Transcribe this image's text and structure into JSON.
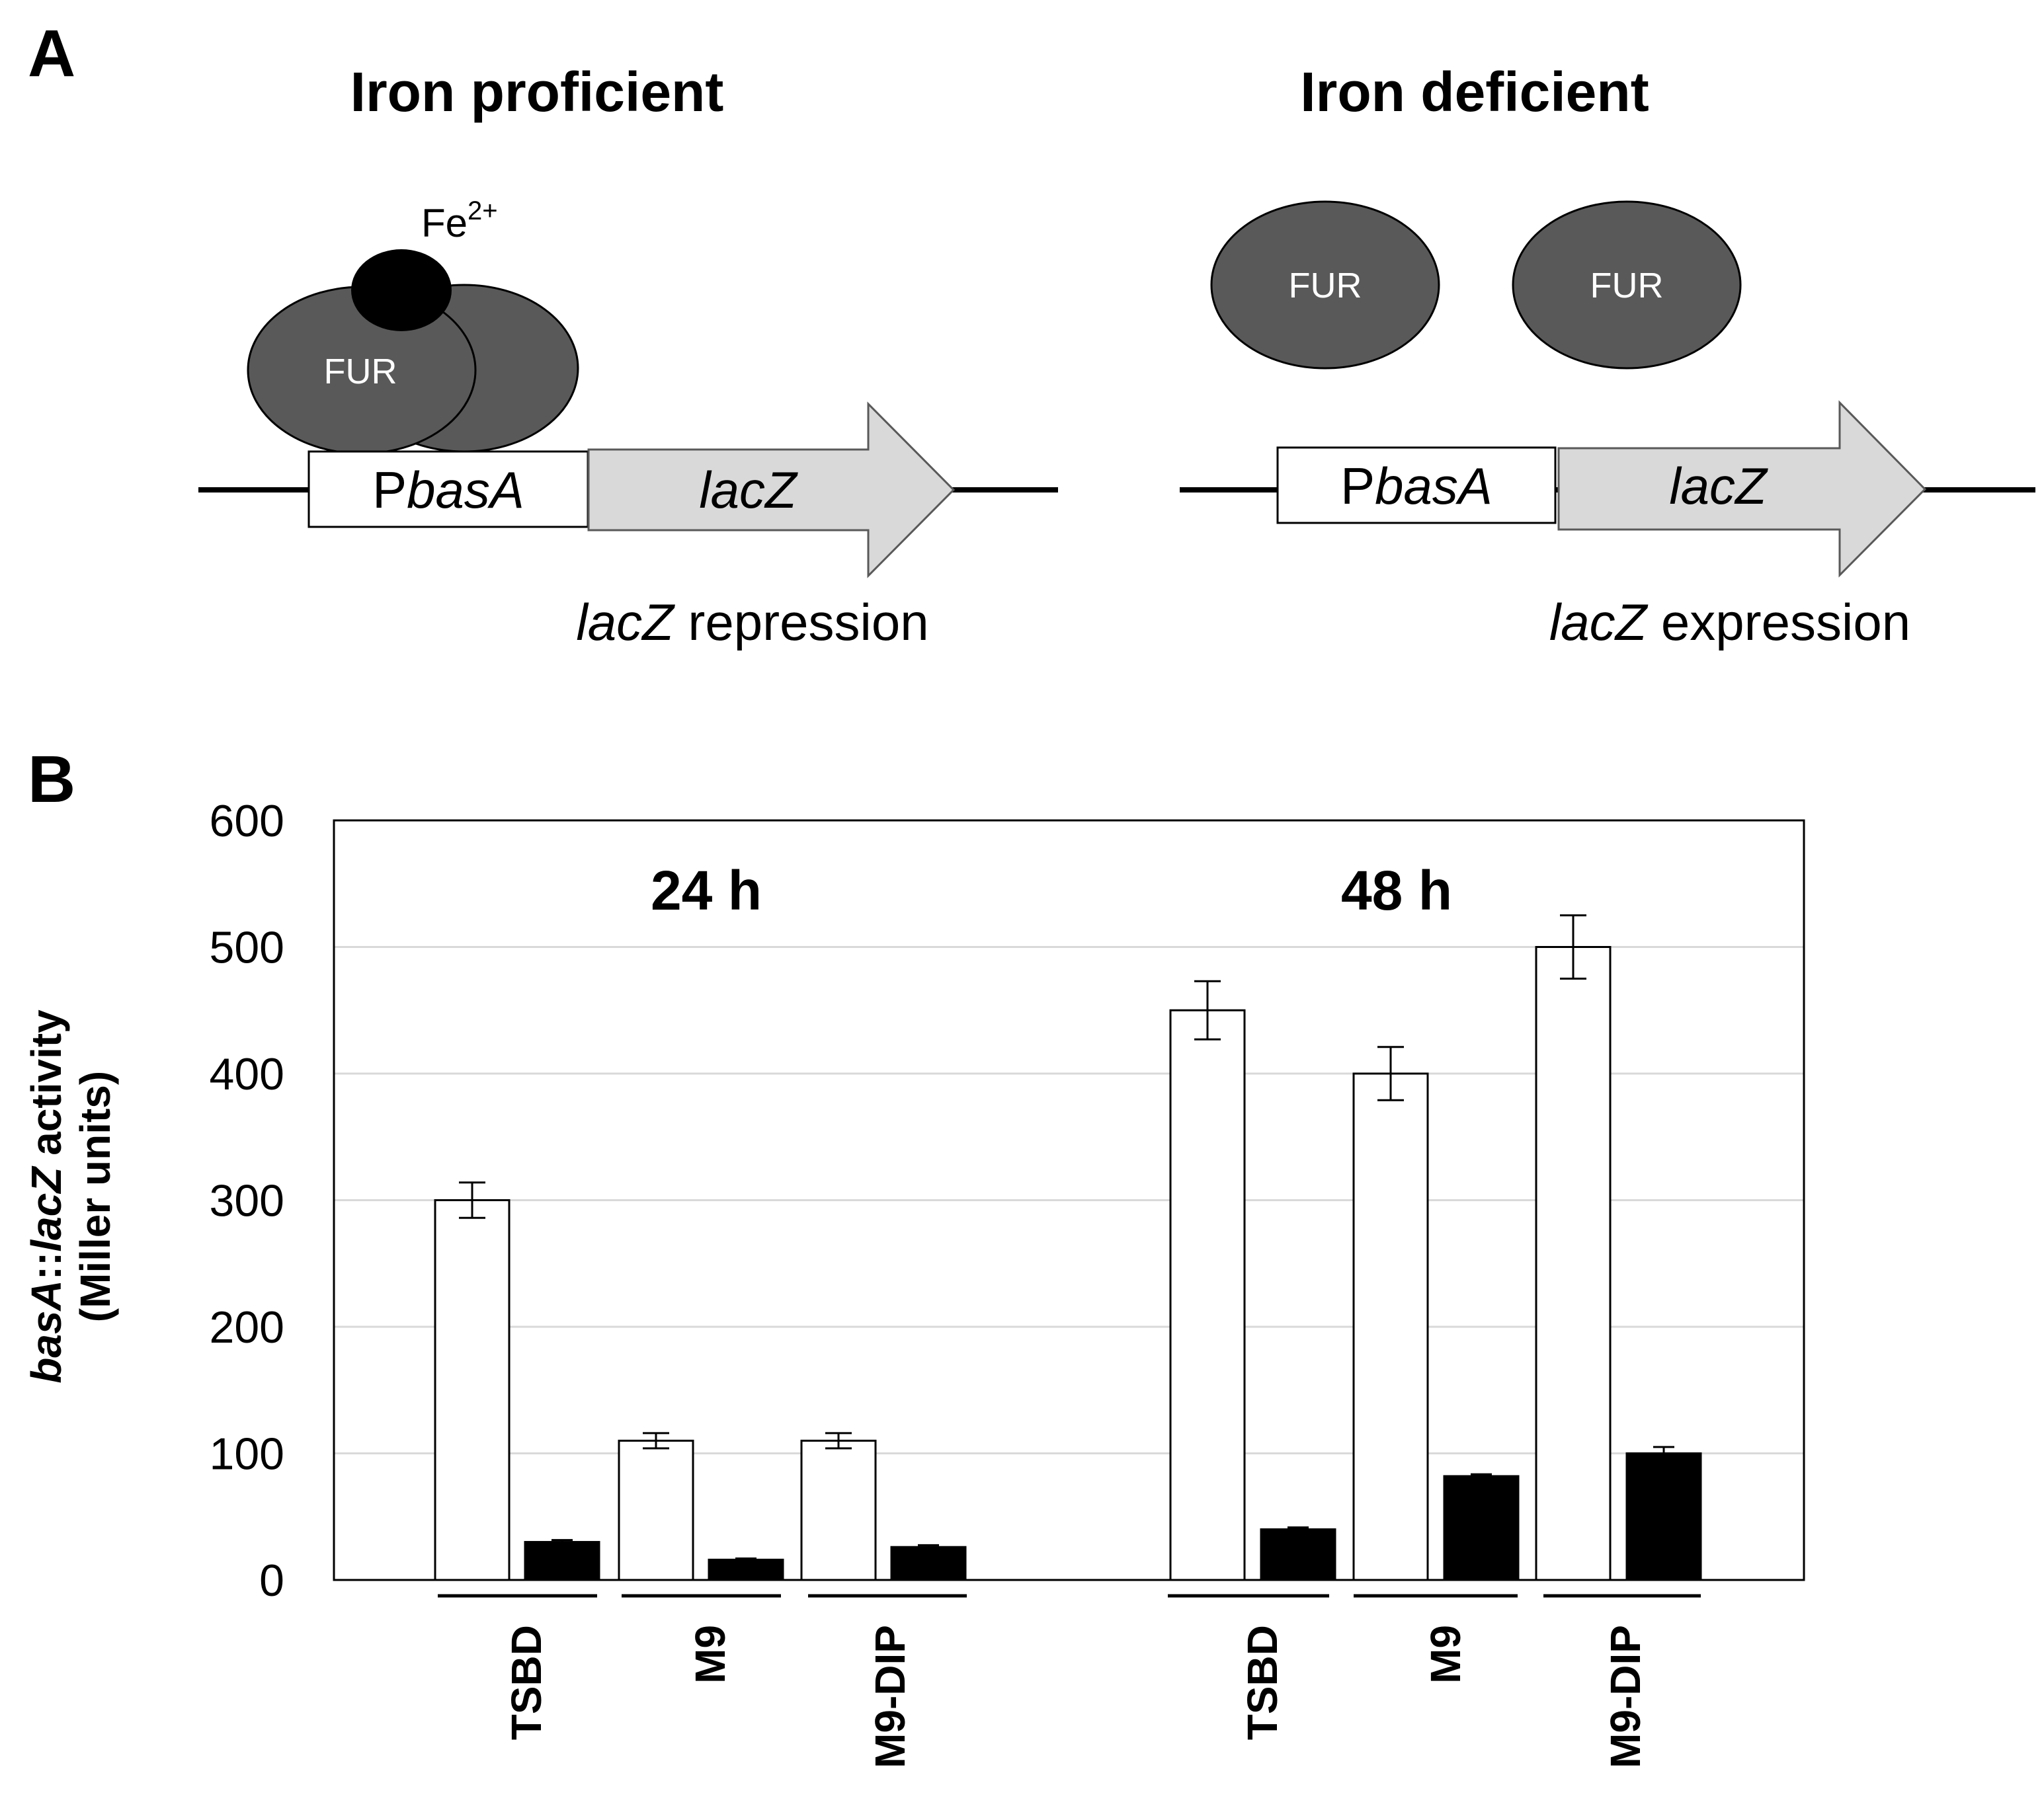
{
  "panel_a": {
    "label": "A",
    "left": {
      "title": "Iron proficient",
      "fe_label": {
        "base": "Fe",
        "sup": "2+"
      },
      "fur_label": "FUR",
      "promoter": {
        "prefix": "P",
        "gene": "basA"
      },
      "gene": "lacZ",
      "caption": {
        "gene": "lacZ",
        "rest": " repression"
      }
    },
    "right": {
      "title": "Iron deficient",
      "fur_labels": [
        "FUR",
        "FUR"
      ],
      "promoter": {
        "prefix": "P",
        "gene": "basA"
      },
      "gene": "lacZ",
      "caption": {
        "gene": "lacZ",
        "rest": " expression"
      }
    }
  },
  "panel_b": {
    "label": "B"
  },
  "colors": {
    "fur_fill": "#595959",
    "fe_fill": "#000000",
    "gene_arrow_fill": "#d9d9d9",
    "open_bar": "#ffffff",
    "filled_bar": "#000000",
    "gridline": "#d9d9d9"
  },
  "chart_data": {
    "type": "bar",
    "ylabel": {
      "gene1": "basA",
      "sep": "::",
      "gene2": "lacZ",
      "rest": " activity",
      "units": "(Miller units)"
    },
    "ylim": [
      0,
      600
    ],
    "yticks": [
      0,
      100,
      200,
      300,
      400,
      500,
      600
    ],
    "grid": true,
    "groups": [
      {
        "title": "24 h",
        "categories": [
          "TSBD",
          "M9",
          "M9-DIP"
        ],
        "series": [
          {
            "fill": "open",
            "values": [
              300,
              110,
              110
            ],
            "errors": [
              14,
              6,
              6
            ]
          },
          {
            "fill": "filled",
            "values": [
              30,
              16,
              26
            ],
            "errors": [
              1.5,
              1,
              1.5
            ]
          }
        ]
      },
      {
        "title": "48 h",
        "categories": [
          "TSBD",
          "M9",
          "M9-DIP"
        ],
        "series": [
          {
            "fill": "open",
            "values": [
              450,
              400,
              500
            ],
            "errors": [
              23,
              21,
              25
            ]
          },
          {
            "fill": "filled",
            "values": [
              40,
              82,
              100
            ],
            "errors": [
              1.5,
              1.5,
              5
            ]
          }
        ]
      }
    ]
  }
}
